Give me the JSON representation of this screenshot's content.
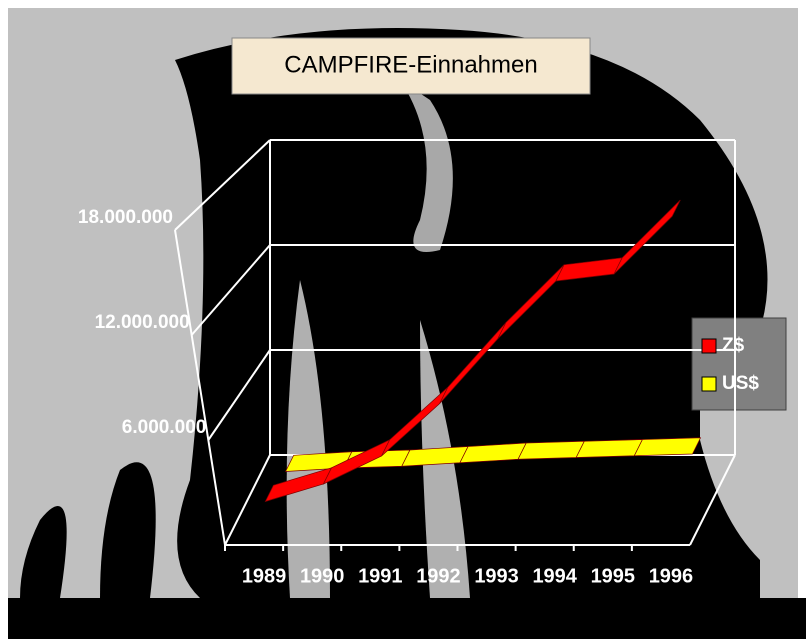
{
  "chart_data": {
    "type": "line3d",
    "title": "CAMPFIRE-Einnahmen",
    "categories": [
      "1989",
      "1990",
      "1991",
      "1992",
      "1993",
      "1994",
      "1995",
      "1996"
    ],
    "series": [
      {
        "name": "Z$",
        "color": "#ff0000",
        "values": [
          1200000,
          2200000,
          3800000,
          6800000,
          10500000,
          13800000,
          14200000,
          17500000
        ]
      },
      {
        "name": "US$",
        "color": "#ffff00",
        "values": [
          600000,
          800000,
          900000,
          1100000,
          1300000,
          1400000,
          1500000,
          1600000
        ]
      }
    ],
    "ylim": [
      0,
      18000000
    ],
    "yticks": [
      {
        "value": 6000000,
        "label": "6.000.000"
      },
      {
        "value": 12000000,
        "label": "12.000.000"
      },
      {
        "value": 18000000,
        "label": "18.000.000"
      }
    ],
    "grid": true,
    "legend": "right"
  }
}
